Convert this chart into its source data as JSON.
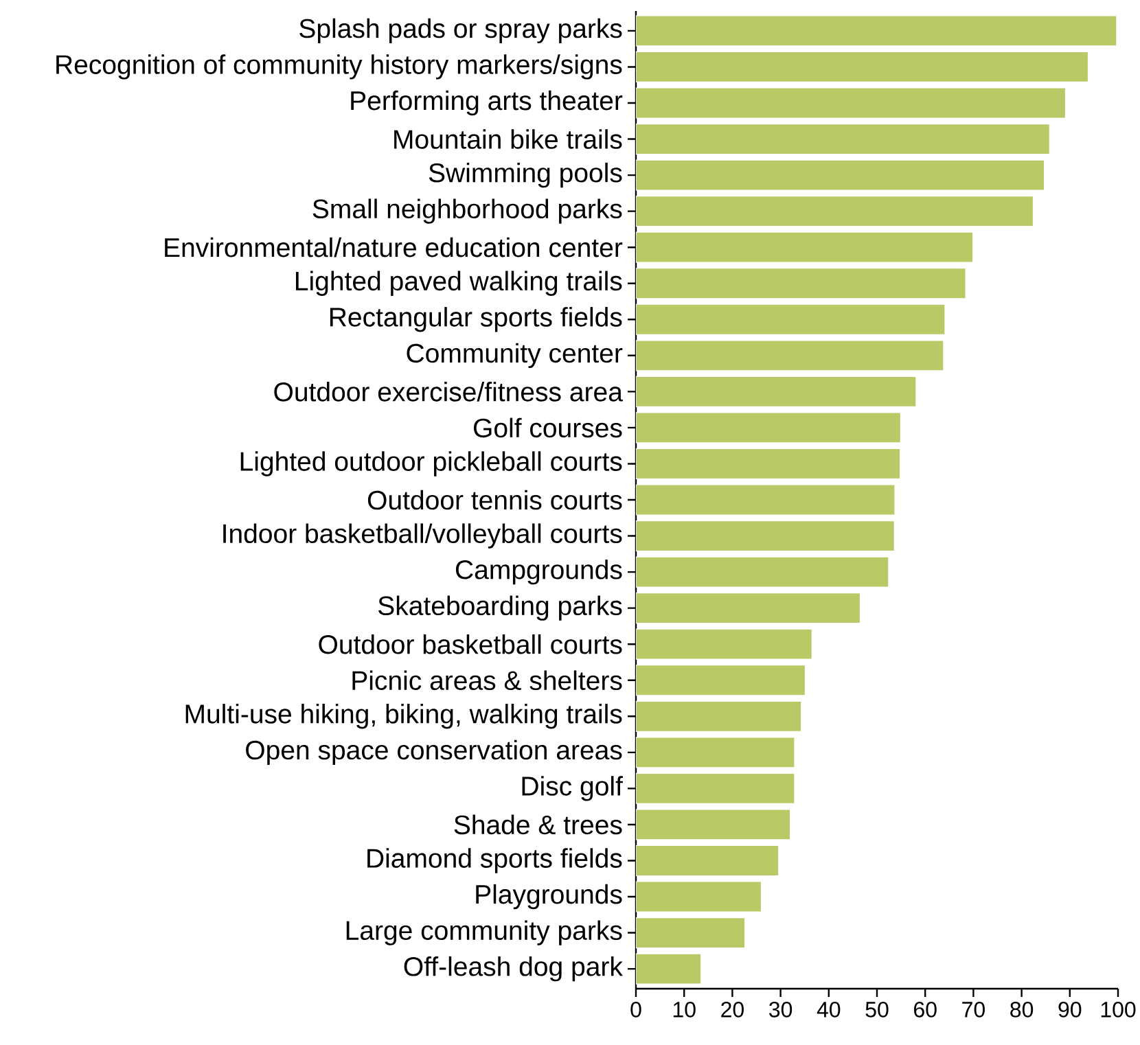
{
  "chart_data": {
    "type": "bar",
    "orientation": "horizontal",
    "color": "#b8c966",
    "categories": [
      "Splash pads or spray parks",
      "Recognition of community history markers/signs",
      "Performing arts theater",
      "Mountain bike trails",
      "Swimming pools",
      "Small neighborhood parks",
      "Environmental/nature education center",
      "Lighted paved walking trails",
      "Rectangular sports fields",
      "Community center",
      "Outdoor exercise/fitness area",
      "Golf courses",
      "Lighted outdoor pickleball courts",
      "Outdoor tennis courts",
      "Indoor basketball/volleyball courts",
      "Campgrounds",
      "Skateboarding parks",
      "Outdoor basketball courts",
      "Picnic areas & shelters",
      "Multi-use hiking, biking, walking trails",
      "Open space conservation areas",
      "Disc golf",
      "Shade & trees",
      "Diamond sports fields",
      "Playgrounds",
      "Large community parks",
      "Off-leash dog park"
    ],
    "values": [
      99.7,
      93.8,
      89.1,
      85.8,
      84.7,
      82.4,
      69.9,
      68.4,
      64.1,
      63.8,
      58.1,
      54.9,
      54.8,
      53.7,
      53.6,
      52.4,
      46.5,
      36.5,
      35.1,
      34.3,
      32.9,
      32.9,
      32.0,
      29.6,
      26.0,
      22.6,
      13.5
    ],
    "xlim": [
      0,
      100
    ],
    "xticks": [
      0,
      10,
      20,
      30,
      40,
      50,
      60,
      70,
      80,
      90,
      100
    ]
  }
}
